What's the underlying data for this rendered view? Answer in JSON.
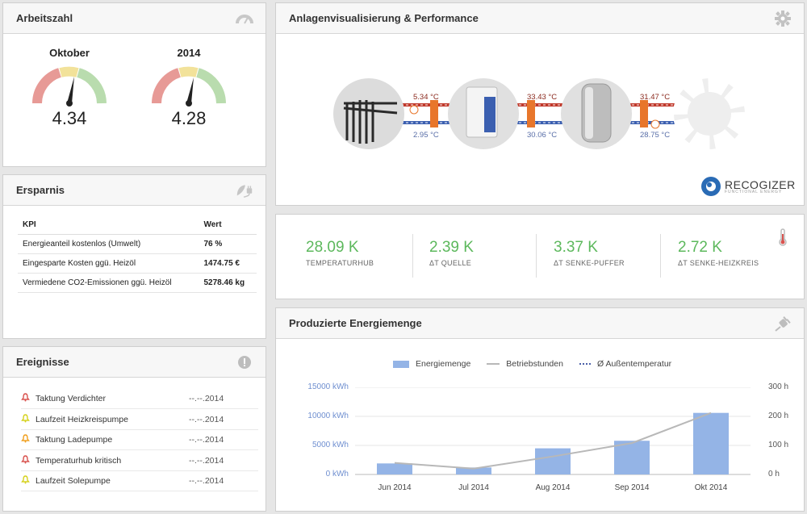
{
  "arbeitszahl": {
    "title": "Arbeitszahl",
    "gauges": [
      {
        "label": "Oktober",
        "value": "4.34"
      },
      {
        "label": "2014",
        "value": "4.28"
      }
    ]
  },
  "ersparnis": {
    "title": "Ersparnis",
    "headers": [
      "KPI",
      "Wert"
    ],
    "rows": [
      {
        "kpi": "Energieanteil kostenlos (Umwelt)",
        "value": "76 %"
      },
      {
        "kpi": "Eingesparte Kosten ggü. Heizöl",
        "value": "1474.75 €"
      },
      {
        "kpi": "Vermiedene CO2-Emissionen ggü. Heizöl",
        "value": "5278.46 kg"
      }
    ]
  },
  "ereignisse": {
    "title": "Ereignisse",
    "rows": [
      {
        "label": "Taktung Verdichter",
        "date": "--.--.2014",
        "color": "#d9534f"
      },
      {
        "label": "Laufzeit Heizkreispumpe",
        "date": "--.--.2014",
        "color": "#d6d21f"
      },
      {
        "label": "Taktung Ladepumpe",
        "date": "--.--.2014",
        "color": "#f0a020"
      },
      {
        "label": "Temperaturhub kritisch",
        "date": "--.--.2014",
        "color": "#d9534f"
      },
      {
        "label": "Laufzeit Solepumpe",
        "date": "--.--.2014",
        "color": "#d6d21f"
      }
    ]
  },
  "anlage": {
    "title": "Anlagenvisualisierung & Performance",
    "temps": {
      "t1_top": "5.34 °C",
      "t1_bot": "2.95 °C",
      "t2_top": "33.43 °C",
      "t2_bot": "30.06 °C",
      "t3_top": "31.47 °C",
      "t3_bot": "28.75 °C"
    },
    "logo_text": "RECOGIZER",
    "logo_sub": "FUNCTIONAL ENERGY"
  },
  "stats": [
    {
      "value": "28.09 K",
      "label": "TEMPERATURHUB"
    },
    {
      "value": "2.39 K",
      "label": "ΔT QUELLE"
    },
    {
      "value": "3.37 K",
      "label": "ΔT SENKE-PUFFER"
    },
    {
      "value": "2.72 K",
      "label": "ΔT SENKE-HEIZKREIS"
    }
  ],
  "energie": {
    "title": "Produzierte Energiemenge",
    "legend": [
      "Energiemenge",
      "Betriebstunden",
      "Ø Außentemperatur"
    ]
  },
  "chart_data": {
    "type": "bar",
    "categories": [
      "Jun 2014",
      "Jul 2014",
      "Aug 2014",
      "Sep 2014",
      "Okt 2014"
    ],
    "series": [
      {
        "name": "Energiemenge",
        "type": "bar",
        "axis": "left",
        "values": [
          1900,
          1200,
          4500,
          5800,
          10600
        ],
        "color": "#94b4e6"
      },
      {
        "name": "Betriebstunden",
        "type": "line",
        "axis": "right",
        "values": [
          40,
          20,
          62,
          108,
          212
        ],
        "color": "#b8b8b8"
      }
    ],
    "y_left": {
      "ticks": [
        "0 kWh",
        "5000 kWh",
        "10000 kWh",
        "15000 kWh"
      ],
      "ylim": [
        0,
        15000
      ]
    },
    "y_right": {
      "ticks": [
        "0 h",
        "100 h",
        "200 h",
        "300 h"
      ],
      "ylim": [
        0,
        300
      ]
    },
    "legend_placement": "top"
  }
}
